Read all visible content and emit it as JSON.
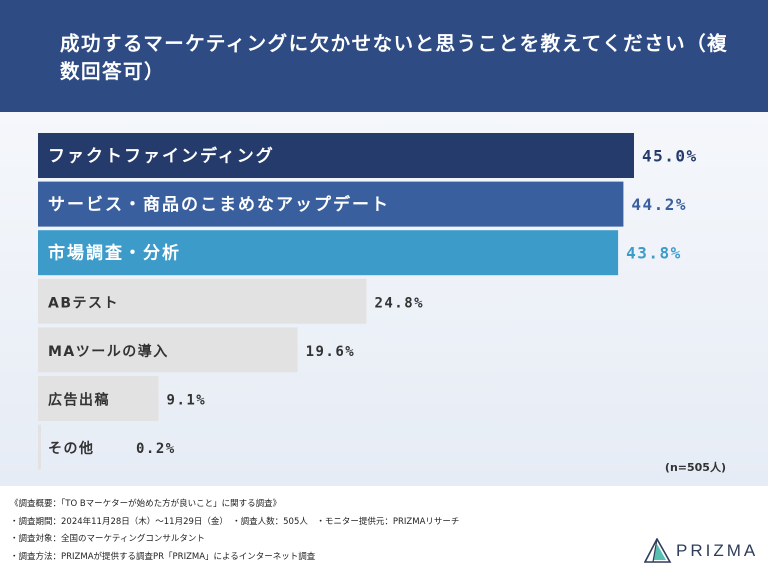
{
  "header": {
    "title": "成功するマーケティングに欠かせないと思うことを教えてください（複数回答可）"
  },
  "chart_data": {
    "type": "bar",
    "orientation": "horizontal",
    "categories": [
      "ファクトファインディング",
      "サービス・商品のこまめなアップデート",
      "市場調査・分析",
      "ABテスト",
      "MAツールの導入",
      "広告出稿",
      "その他"
    ],
    "values": [
      45.0,
      44.2,
      43.8,
      24.8,
      19.6,
      9.1,
      0.2
    ],
    "value_labels": [
      "45.0%",
      "44.2%",
      "43.8%",
      "24.8%",
      "19.6%",
      "9.1%",
      "0.2%"
    ],
    "bar_colors": [
      "#253b6b",
      "#3a5f9e",
      "#3c9bc9",
      "#e2e2e2",
      "#e2e2e2",
      "#e2e2e2",
      "#e2e2e2"
    ],
    "label_colors": [
      "#ffffff",
      "#ffffff",
      "#ffffff",
      "#333333",
      "#333333",
      "#333333",
      "#333333"
    ],
    "value_colors": [
      "#253b6b",
      "#3a5f9e",
      "#3c9bc9",
      "#333333",
      "#333333",
      "#333333",
      "#333333"
    ],
    "xlim": [
      0,
      45
    ],
    "legend": "none",
    "grid": false
  },
  "note": "(n=505人)",
  "footer": {
    "lines": [
      "《調査概要：「TO Bマーケターが始めた方が良いこと」に関する調査》",
      "・調査期間：2024年11月28日（木）〜11月29日（金）　・調査人数：505人　・モニター提供元：PRIZMAリサーチ",
      "・調査対象：全国のマーケティングコンサルタント",
      "・調査方法：PRIZMAが提供する調査PR「PRIZMA」によるインターネット調査"
    ],
    "logo_text": "PRIZMA"
  }
}
